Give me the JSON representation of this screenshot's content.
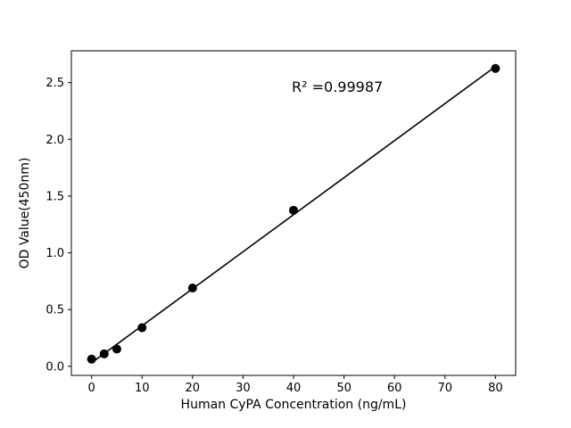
{
  "chart_data": {
    "type": "scatter",
    "title": "",
    "xlabel": "Human CyPA Concentration (ng/mL)",
    "ylabel": "OD Value(450nm)",
    "x": [
      0,
      2.5,
      5,
      10,
      20,
      40,
      80
    ],
    "y": [
      0.063,
      0.11,
      0.152,
      0.34,
      0.69,
      1.375,
      2.625
    ],
    "annotation": {
      "text": "R² =0.99987",
      "x": 40,
      "y": 2.4
    },
    "xlim": [
      -4,
      84
    ],
    "ylim": [
      -0.08,
      2.78
    ],
    "xticks": [
      "0",
      "10",
      "20",
      "30",
      "40",
      "50",
      "60",
      "70",
      "80"
    ],
    "xtick_values": [
      0,
      10,
      20,
      30,
      40,
      50,
      60,
      70,
      80
    ],
    "yticks": [
      "0.0",
      "0.5",
      "1.0",
      "1.5",
      "2.0",
      "2.5"
    ],
    "ytick_values": [
      0,
      0.5,
      1.0,
      1.5,
      2.0,
      2.5
    ],
    "fit_line_range": [
      0,
      80
    ],
    "grid": false,
    "legend": null,
    "marker_color": "#000000",
    "line_color": "#000000",
    "axis_color": "#000000"
  }
}
